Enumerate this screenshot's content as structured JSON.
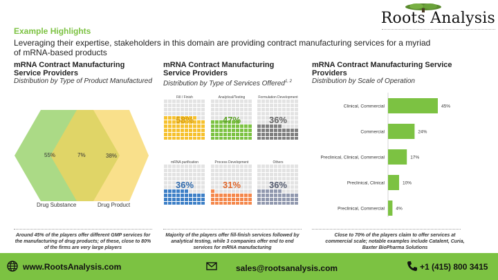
{
  "brand": {
    "name": "Roots Analysis",
    "accent": "#7cc242"
  },
  "highlight": {
    "title": "Example Highlights",
    "text": "Leveraging their expertise, stakeholders in this domain are providing contract manufacturing services for a myriad of mRNA-based products"
  },
  "panels": [
    {
      "title": "mRNA Contract Manufacturing Service Providers",
      "subtitle": "Distribution by Type of Product Manufactured",
      "caption": "Around 45% of the players offer different GMP services for the manufacturing of drug products; of these, close to 80% of the firms are very large players"
    },
    {
      "title": "mRNA Contract Manufacturing Service Providers",
      "subtitle": "Distribution by Type of Services Offered",
      "subtitle_sup": "1, 2",
      "caption": "Majority of the players offer fill-finish services followed by analytical testing, while 3 companies offer end to end services for mRNA manufacturing"
    },
    {
      "title": "mRNA Contract Manufacturing Service Providers",
      "subtitle": "Distribution by Scale of Operation",
      "caption": "Close to 70% of the players claim to offer services at commercial scale; notable examples include Catalent, Curia, Baxter BioPharma Solutions"
    }
  ],
  "chart_data": [
    {
      "type": "venn",
      "sets": [
        {
          "name": "Drug Substance",
          "value": "55%",
          "color": "#8fcd5e"
        },
        {
          "name": "Drug Product",
          "value": "38%",
          "color": "#f7d35a"
        }
      ],
      "overlap": "7%"
    },
    {
      "type": "waffle",
      "items": [
        {
          "name": "Fill / Finish",
          "value": 58,
          "label": "58%",
          "color": "#f6c12e",
          "text_color": "#d9a010"
        },
        {
          "name": "Analytical/Testing",
          "value": 47,
          "label": "47%",
          "color": "#7cc242",
          "text_color": "#5fa42a"
        },
        {
          "name": "Formulation Development",
          "value": 36,
          "label": "36%",
          "color": "#7f7f7f",
          "text_color": "#666666"
        },
        {
          "name": "mRNA purification",
          "value": 36,
          "label": "36%",
          "color": "#3d7fc6",
          "text_color": "#2f6aad"
        },
        {
          "name": "Process Development",
          "value": 31,
          "label": "31%",
          "color": "#f4874b",
          "text_color": "#e0662a"
        },
        {
          "name": "Others",
          "value": 36,
          "label": "36%",
          "color": "#9098ae",
          "text_color": "#555c70"
        }
      ]
    },
    {
      "type": "bar",
      "orientation": "horizontal",
      "categories": [
        "Clinical, Commercial",
        "Commercial",
        "Preclinical, Clinical, Commercial",
        "Preclinical, Clinical",
        "Preclinical, Commercial"
      ],
      "values": [
        45,
        24,
        17,
        10,
        4
      ],
      "labels": [
        "45%",
        "24%",
        "17%",
        "10%",
        "4%"
      ],
      "color": "#7cc242",
      "xlim": [
        0,
        50
      ]
    }
  ],
  "footer": {
    "website": "www.RootsAnalysis.com",
    "email": "sales@rootsanalysis.com",
    "phone": "+1 (415) 800 3415"
  }
}
